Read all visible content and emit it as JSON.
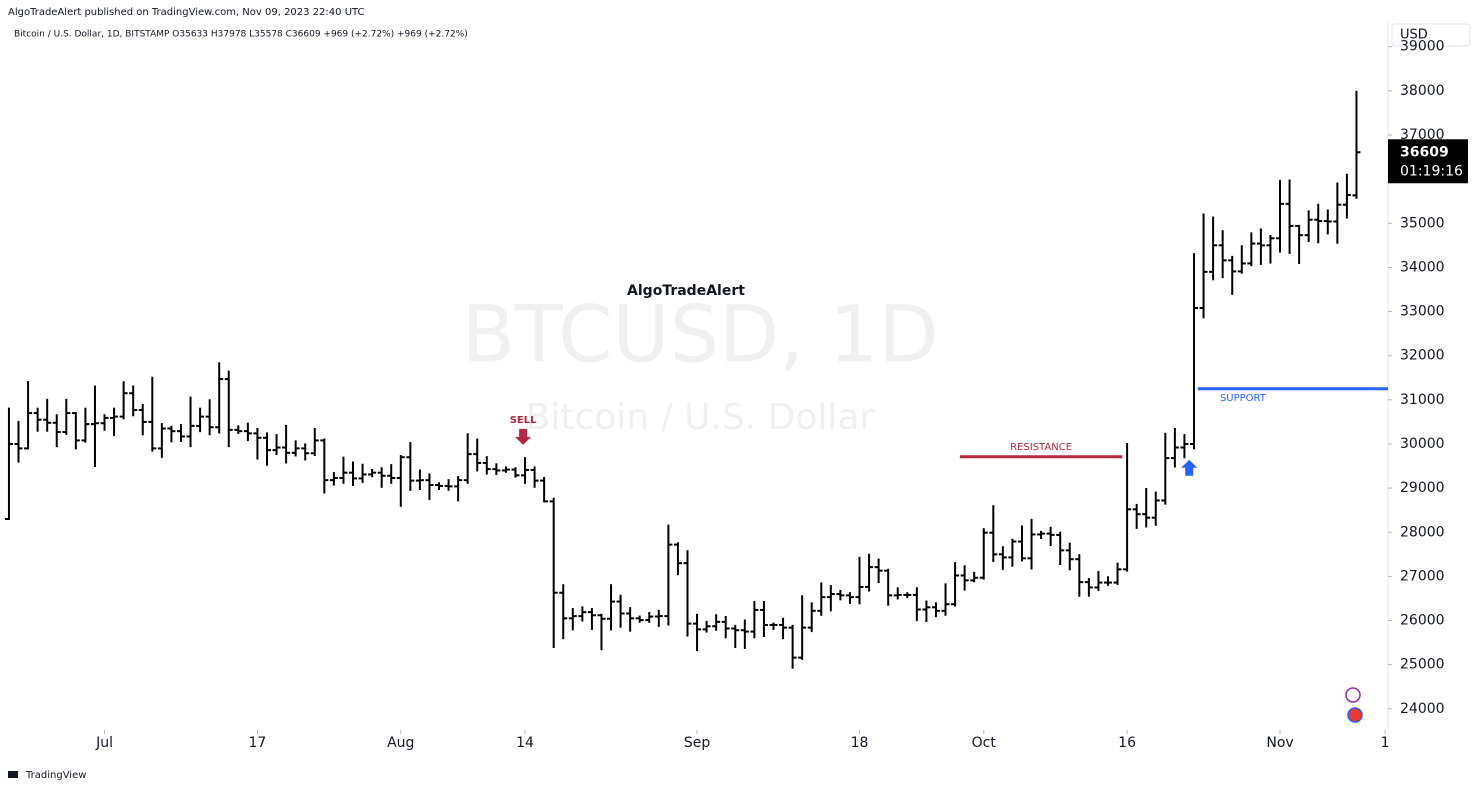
{
  "header": {
    "published": "AlgoTradeAlert published on TradingView.com, Nov 09, 2023 22:40 UTC",
    "footer": "TradingView"
  },
  "chart_data": {
    "type": "ohlc",
    "legend": "Bitcoin / U.S. Dollar, 1D, BITSTAMP  O35633  H37978  L35578  C36609  +969 (+2.72%)  +969 (+2.72%)",
    "watermark": "BTCUSD, 1D",
    "watermark_subtitle": "Bitcoin / U.S. Dollar",
    "author": "AlgoTradeAlert",
    "currency": "USD",
    "countdown": "01:19:16",
    "color": "#000000",
    "x": [
      -10,
      -9,
      -8,
      -7,
      -6,
      -5,
      -4,
      -3,
      -2,
      -1,
      0,
      1,
      2,
      3,
      4,
      5,
      6,
      7,
      8,
      9,
      10,
      11,
      12,
      13,
      14,
      15,
      16,
      17,
      18,
      19,
      20,
      21,
      22,
      23,
      24,
      25,
      26,
      27,
      28,
      29,
      30,
      31,
      32,
      33,
      34,
      35,
      36,
      37,
      38,
      39,
      40,
      41,
      42,
      43,
      44,
      45,
      46,
      47,
      48,
      49,
      50,
      51,
      52,
      53,
      54,
      55,
      56,
      57,
      58,
      59,
      60,
      61,
      62,
      63,
      64,
      65,
      66,
      67,
      68,
      69,
      70,
      71,
      72,
      73,
      74,
      75,
      76,
      77,
      78,
      79,
      80,
      81,
      82,
      83,
      84,
      85,
      86,
      87,
      88,
      89,
      90,
      91,
      92,
      93,
      94,
      95,
      96,
      97,
      98,
      99,
      100,
      101,
      102,
      103,
      104,
      105,
      106,
      107,
      108,
      109,
      110,
      111,
      112,
      113,
      114,
      115,
      116,
      117,
      118,
      119,
      120,
      121,
      122,
      123,
      124,
      125,
      126,
      127,
      128,
      129,
      130,
      131
    ],
    "open": [
      28300,
      30000,
      29900,
      30700,
      30550,
      30480,
      30270,
      30700,
      30080,
      30450,
      30470,
      30590,
      30620,
      31150,
      30770,
      30500,
      29900,
      30350,
      30290,
      30170,
      30410,
      30620,
      30380,
      31470,
      30320,
      30290,
      30240,
      30140,
      29860,
      29920,
      29800,
      29900,
      29790,
      30080,
      29180,
      29230,
      29350,
      29220,
      29310,
      29350,
      29280,
      29230,
      29700,
      29170,
      29180,
      29070,
      29050,
      29040,
      29180,
      29770,
      29570,
      29430,
      29400,
      29420,
      29290,
      29410,
      29170,
      28700,
      26630,
      26050,
      26100,
      26190,
      26120,
      26040,
      26430,
      26160,
      26050,
      26010,
      26090,
      26100,
      27720,
      27300,
      25930,
      25800,
      25870,
      25970,
      25820,
      25780,
      25750,
      26240,
      25900,
      25900,
      25840,
      25160,
      25840,
      26220,
      26530,
      26600,
      26570,
      26530,
      26760,
      27210,
      27130,
      26570,
      26580,
      26580,
      26250,
      26300,
      26220,
      26370,
      27020,
      26910,
      26970,
      27990,
      27500,
      27430,
      27790,
      27410,
      27950,
      27970,
      27940,
      27590,
      27390,
      26870,
      26750,
      26860,
      26860,
      27160,
      28520,
      28410,
      28330,
      28720,
      29680,
      29920,
      30000,
      33080,
      33900,
      34500,
      34160,
      33910,
      34090,
      34540,
      34500,
      34660,
      35440,
      34940,
      34730,
      35080,
      35050,
      35040,
      35420,
      35633
    ],
    "high": [
      30800,
      30500,
      31400,
      30800,
      31000,
      30650,
      31000,
      30700,
      30800,
      31300,
      30650,
      30800,
      31400,
      31300,
      30880,
      31500,
      30450,
      30390,
      30430,
      31050,
      30800,
      30990,
      31830,
      31640,
      30400,
      30460,
      30340,
      30240,
      30200,
      30410,
      30060,
      29990,
      30340,
      30100,
      29340,
      29690,
      29580,
      29530,
      29410,
      29450,
      29520,
      29730,
      30020,
      29400,
      29310,
      29110,
      29180,
      29250,
      30220,
      30100,
      29700,
      29540,
      29470,
      29450,
      29680,
      29470,
      29230,
      28760,
      26800,
      26260,
      26300,
      26260,
      26130,
      26800,
      26560,
      26280,
      26090,
      26170,
      26220,
      28150,
      27750,
      27570,
      26130,
      25970,
      26120,
      26080,
      25880,
      26000,
      26420,
      26420,
      25930,
      26040,
      25880,
      26550,
      26390,
      26840,
      26780,
      26670,
      26620,
      27420,
      27490,
      27380,
      27150,
      26730,
      26620,
      26730,
      26430,
      26390,
      26820,
      27300,
      27230,
      27080,
      28070,
      28590,
      27660,
      27830,
      28130,
      28280,
      28010,
      28100,
      27990,
      27740,
      27480,
      26940,
      27100,
      26980,
      27290,
      30000,
      28620,
      28980,
      28900,
      30230,
      30340,
      30200,
      34300,
      35200,
      35130,
      34820,
      34240,
      34480,
      34770,
      34860,
      34710,
      35960,
      35970,
      34940,
      35270,
      35420,
      35290,
      35900,
      36100,
      37978
    ],
    "low": [
      28300,
      29600,
      29900,
      30300,
      30300,
      29950,
      30230,
      29900,
      30050,
      29500,
      30320,
      30200,
      30580,
      30650,
      30220,
      29850,
      29710,
      30060,
      30070,
      29950,
      30290,
      30220,
      30260,
      29950,
      30250,
      30090,
      29670,
      29530,
      29770,
      29580,
      29740,
      29650,
      29750,
      28900,
      29080,
      29120,
      29070,
      29140,
      29270,
      29030,
      29120,
      28600,
      28960,
      28980,
      28750,
      28980,
      28960,
      28720,
      29120,
      29400,
      29330,
      29320,
      29370,
      29260,
      29120,
      29030,
      28700,
      25400,
      25600,
      25800,
      26000,
      25810,
      25350,
      25800,
      25860,
      25770,
      25970,
      25970,
      25880,
      25910,
      27050,
      25660,
      25330,
      25750,
      25790,
      25620,
      25400,
      25380,
      25620,
      25650,
      25810,
      25600,
      24930,
      25130,
      25760,
      26130,
      26230,
      26480,
      26400,
      26390,
      26680,
      26870,
      26360,
      26500,
      26530,
      26010,
      25990,
      26100,
      26130,
      26340,
      26700,
      26890,
      26950,
      27350,
      27170,
      27240,
      27360,
      27180,
      27870,
      27710,
      27280,
      27160,
      26560,
      26560,
      26690,
      26810,
      26830,
      27130,
      28100,
      28130,
      28170,
      28650,
      29490,
      29700,
      29900,
      32870,
      33730,
      33780,
      33400,
      33880,
      34050,
      34080,
      34110,
      34360,
      34330,
      34100,
      34600,
      34570,
      34770,
      34560,
      35130,
      35578
    ],
    "close": [
      30000,
      29900,
      30700,
      30550,
      30480,
      30270,
      30700,
      30080,
      30450,
      30470,
      30590,
      30620,
      31150,
      30770,
      30500,
      29900,
      30350,
      30290,
      30170,
      30410,
      30620,
      30380,
      31470,
      30320,
      30290,
      30240,
      30140,
      29860,
      29920,
      29800,
      29900,
      29790,
      30080,
      29180,
      29230,
      29350,
      29220,
      29310,
      29350,
      29280,
      29230,
      29700,
      29170,
      29180,
      29070,
      29050,
      29040,
      29180,
      29770,
      29570,
      29430,
      29400,
      29420,
      29290,
      29410,
      29170,
      28700,
      26630,
      26050,
      26100,
      26190,
      26120,
      26040,
      26430,
      26160,
      26050,
      26010,
      26090,
      26100,
      27720,
      27300,
      25930,
      25800,
      25870,
      25970,
      25820,
      25780,
      25750,
      26240,
      25900,
      25900,
      25840,
      25160,
      25840,
      26220,
      26530,
      26600,
      26570,
      26530,
      26760,
      27210,
      27130,
      26570,
      26580,
      26580,
      26250,
      26300,
      26220,
      26370,
      27020,
      26910,
      26970,
      27990,
      27500,
      27430,
      27790,
      27410,
      27950,
      27970,
      27940,
      27590,
      27390,
      26870,
      26750,
      26860,
      26860,
      27160,
      28520,
      28410,
      28330,
      28720,
      29680,
      29920,
      30000,
      33080,
      33900,
      34500,
      34160,
      33910,
      34090,
      34540,
      34500,
      34660,
      35440,
      34940,
      34730,
      35080,
      35050,
      35040,
      35420,
      35640,
      36609
    ],
    "xlim": [
      -10.1,
      134.3
    ],
    "xticks": [
      {
        "value": 0,
        "label": "Jul"
      },
      {
        "value": 16,
        "label": "17"
      },
      {
        "value": 31,
        "label": "Aug"
      },
      {
        "value": 44,
        "label": "14"
      },
      {
        "value": 62,
        "label": "Sep"
      },
      {
        "value": 79,
        "label": "18"
      },
      {
        "value": 92,
        "label": "Oct"
      },
      {
        "value": 107,
        "label": "16"
      },
      {
        "value": 123,
        "label": "Nov"
      },
      {
        "value": 134,
        "label": "1"
      }
    ],
    "ylim": [
      23520,
      39560
    ],
    "yticks": [
      24000,
      25000,
      26000,
      27000,
      28000,
      29000,
      30000,
      31000,
      32000,
      33000,
      34000,
      35000,
      36000,
      37000,
      38000,
      39000
    ],
    "annotations": [
      {
        "label": "SELL",
        "kind": "arrow-down",
        "x": 43.8,
        "y": 30160,
        "color": "#b2283d"
      },
      {
        "kind": "arrow-up",
        "x": 113.5,
        "y": 29460,
        "color": "#2962ff"
      },
      {
        "label": "RESISTANCE",
        "kind": "level",
        "x": [
          89.5,
          106.5
        ],
        "y": 29710,
        "color": "#b2283d"
      },
      {
        "label": "SUPPORT",
        "kind": "level",
        "x": [
          114.4,
          134.3
        ],
        "y": 31250,
        "color": "#2962ff"
      }
    ]
  }
}
